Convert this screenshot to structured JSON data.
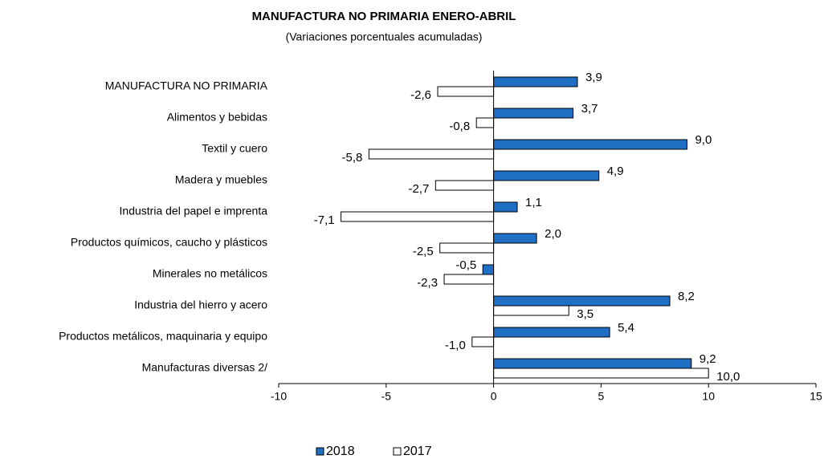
{
  "chart_data": {
    "type": "hbar",
    "title": "MANUFACTURA NO PRIMARIA ENERO-ABRIL",
    "subtitle": "(Variaciones porcentuales acumuladas)",
    "categories": [
      "MANUFACTURA NO PRIMARIA",
      "Alimentos y bebidas",
      "Textil y cuero",
      "Madera y muebles",
      "Industria del papel e imprenta",
      "Productos químicos, caucho y plásticos",
      "Minerales no metálicos",
      "Industria del hierro y acero",
      "Productos metálicos, maquinaria y equipo",
      "Manufacturas diversas 2/"
    ],
    "series": [
      {
        "name": "2018",
        "color": "#1f6fc5",
        "values": [
          3.9,
          3.7,
          9.0,
          4.9,
          1.1,
          2.0,
          -0.5,
          8.2,
          5.4,
          9.2
        ],
        "value_labels": [
          "3,9",
          "3,7",
          "9,0",
          "4,9",
          "1,1",
          "2,0",
          "-0,5",
          "8,2",
          "5,4",
          "9,2"
        ]
      },
      {
        "name": "2017",
        "color": "#ffffff",
        "values": [
          -2.6,
          -0.8,
          -5.8,
          -2.7,
          -7.1,
          -2.5,
          -2.3,
          3.5,
          -1.0,
          10.0
        ],
        "value_labels": [
          "-2,6",
          "-0,8",
          "-5,8",
          "-2,7",
          "-7,1",
          "-2,5",
          "-2,3",
          "3,5",
          "-1,0",
          "10,0"
        ]
      }
    ],
    "xlim": [
      -10,
      15
    ],
    "xticks": [
      -10,
      -5,
      0,
      5,
      10,
      15
    ],
    "legend": "bottom"
  }
}
